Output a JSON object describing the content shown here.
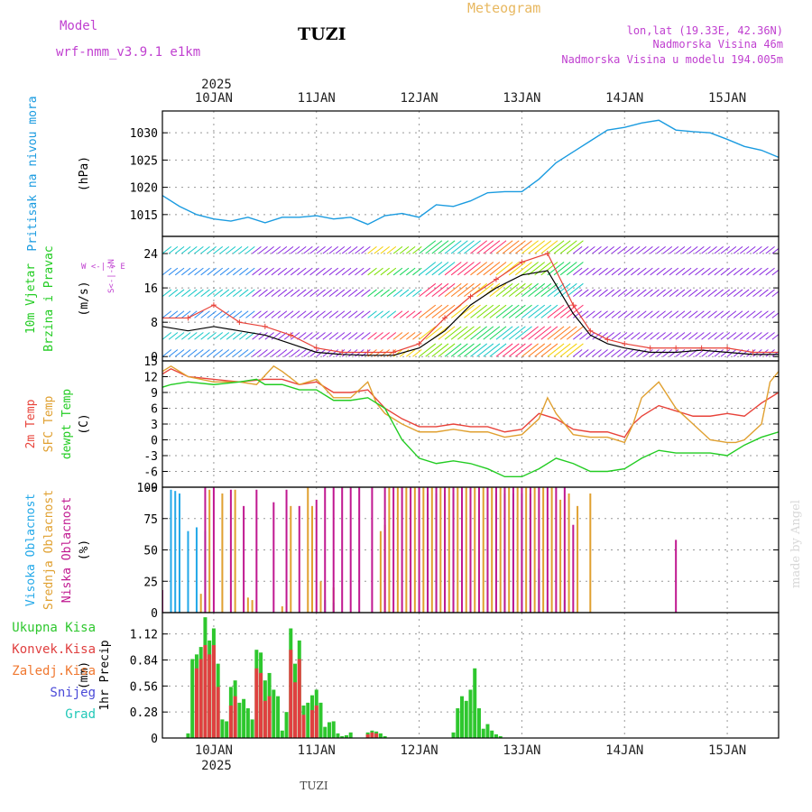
{
  "header": {
    "model_label": "Model",
    "model_name": "wrf-nmm_v3.9.1 e1km",
    "location": "TUZI",
    "product": "Meteogram",
    "coords": "lon,lat (19.33E, 42.36N)",
    "elevation": "Nadmorska Visina 46m",
    "model_elevation": "Nadmorska Visina u modelu 194.005m",
    "footer_location": "TUZI",
    "credit": "made by Angel"
  },
  "colors": {
    "pressure": "#1a9be0",
    "t2m": "#e8433a",
    "sfc": "#e0a030",
    "dewpt": "#22cc22",
    "high_cloud": "#22a8e8",
    "mid_cloud": "#e0a030",
    "low_cloud": "#c01890",
    "total_precip": "#2ec72e",
    "conv_precip": "#e04040",
    "frozen_precip": "#f07830",
    "snow": "#4a4ad8",
    "hail": "#22c8b8",
    "model_label": "#c040d0",
    "product": "#e8b860"
  },
  "chart_data": {
    "type": "meteogram",
    "year": "2025",
    "start": "2025-01-09 12:00",
    "end": "2025-01-15 12:00",
    "date_ticks": [
      {
        "label": "10JAN",
        "hours": 12
      },
      {
        "label": "11JAN",
        "hours": 36
      },
      {
        "label": "12JAN",
        "hours": 60
      },
      {
        "label": "13JAN",
        "hours": 84
      },
      {
        "label": "14JAN",
        "hours": 108
      },
      {
        "label": "15JAN",
        "hours": 132
      }
    ],
    "panels": [
      {
        "id": "pressure",
        "type": "line",
        "ylabel": [
          "Pritisak na nivou mora"
        ],
        "unit": "(hPa)",
        "ylim": [
          1011,
          1034
        ],
        "yticks": [
          1015,
          1020,
          1025,
          1030
        ],
        "grid": true,
        "series": [
          {
            "key": "slp",
            "color_key": "pressure",
            "x": [
              0,
              4,
              8,
              12,
              16,
              20,
              24,
              28,
              32,
              36,
              40,
              44,
              48,
              52,
              56,
              60,
              64,
              68,
              72,
              76,
              80,
              84,
              88,
              92,
              96,
              100,
              104,
              108,
              112,
              116,
              120,
              124,
              128,
              132,
              136,
              140,
              144
            ],
            "y": [
              1018.5,
              1016.5,
              1015.0,
              1014.2,
              1013.8,
              1014.5,
              1013.5,
              1014.5,
              1014.5,
              1014.8,
              1014.2,
              1014.5,
              1013.2,
              1014.8,
              1015.2,
              1014.5,
              1016.8,
              1016.5,
              1017.5,
              1019.0,
              1019.2,
              1019.2,
              1021.5,
              1024.5,
              1026.5,
              1028.5,
              1030.5,
              1031.0,
              1031.8,
              1032.3,
              1030.5,
              1030.2,
              1030.0,
              1028.8,
              1027.5,
              1026.8,
              1025.5
            ]
          }
        ]
      },
      {
        "id": "wind",
        "type": "wind",
        "ylabel": [
          "10m Vjetar",
          "Brzina i Pravac"
        ],
        "unit": "(m/s)",
        "compass": "W <-|-> E",
        "compass_ns": "S<-|->N",
        "ylim": [
          -1,
          28
        ],
        "yticks": [
          0,
          8,
          16,
          24
        ],
        "grid": true,
        "series": [
          {
            "key": "speed",
            "color": "#000000",
            "x": [
              0,
              6,
              12,
              18,
              24,
              30,
              36,
              42,
              48,
              54,
              60,
              66,
              72,
              78,
              84,
              90,
              96,
              100,
              104,
              108,
              114,
              120,
              126,
              132,
              138,
              144
            ],
            "y": [
              7,
              6,
              7,
              6,
              5,
              3,
              1,
              0.5,
              0.3,
              0.3,
              2,
              6,
              12,
              16,
              19,
              20,
              10,
              5,
              3,
              2,
              1,
              1,
              1.5,
              1,
              0.5,
              0.5
            ]
          },
          {
            "key": "gust",
            "color_key": "t2m",
            "x": [
              0,
              6,
              12,
              18,
              24,
              30,
              36,
              42,
              48,
              54,
              60,
              66,
              72,
              78,
              84,
              90,
              96,
              100,
              104,
              108,
              114,
              120,
              126,
              132,
              138,
              144
            ],
            "y": [
              9,
              9,
              12,
              8,
              7,
              5,
              2,
              1,
              1,
              1,
              3,
              9,
              14,
              18,
              22,
              24,
              12,
              6,
              4,
              3,
              2,
              2,
              2,
              2,
              1,
              1
            ]
          }
        ]
      },
      {
        "id": "temp",
        "type": "line",
        "ylabel": [
          "2m Temp",
          "SFC Temp",
          "dewpt Temp"
        ],
        "label_color_keys": [
          "t2m",
          "sfc",
          "dewpt"
        ],
        "unit": "(C)",
        "ylim": [
          -9,
          15
        ],
        "yticks": [
          -9,
          -6,
          -3,
          0,
          3,
          6,
          9,
          12,
          15
        ],
        "grid": true,
        "series": [
          {
            "key": "t2m",
            "color_key": "t2m",
            "x": [
              0,
              2,
              6,
              12,
              18,
              24,
              28,
              32,
              36,
              40,
              44,
              48,
              52,
              56,
              60,
              64,
              68,
              72,
              76,
              80,
              84,
              88,
              92,
              96,
              100,
              104,
              108,
              110,
              112,
              116,
              120,
              124,
              128,
              132,
              136,
              140,
              144
            ],
            "y": [
              12.5,
              13.5,
              12,
              11.5,
              11,
              11.5,
              11.5,
              10.5,
              11,
              9,
              9,
              9.5,
              6,
              4,
              2.5,
              2.5,
              3,
              2.5,
              2.5,
              1.5,
              2,
              5,
              4,
              2,
              1.5,
              1.5,
              0.5,
              3,
              4.5,
              6.5,
              5.5,
              4.5,
              4.5,
              5,
              4.5,
              7,
              9
            ]
          },
          {
            "key": "sfc",
            "color_key": "sfc",
            "x": [
              0,
              2,
              6,
              12,
              18,
              22,
              26,
              28,
              32,
              36,
              40,
              44,
              48,
              50,
              52,
              56,
              60,
              64,
              68,
              72,
              76,
              80,
              84,
              88,
              90,
              92,
              96,
              100,
              104,
              108,
              110,
              112,
              116,
              120,
              124,
              128,
              132,
              134,
              136,
              140,
              142,
              144
            ],
            "y": [
              13,
              14,
              12,
              11,
              11,
              10.5,
              14,
              13,
              10.5,
              11.5,
              8,
              8,
              11,
              7,
              5,
              3,
              1.5,
              1.5,
              2,
              1.5,
              1.5,
              0.5,
              1,
              4,
              8,
              5,
              1,
              0.5,
              0.5,
              -0.5,
              3,
              8,
              11,
              6,
              3,
              0,
              -0.5,
              -0.5,
              0,
              3,
              11,
              13
            ]
          },
          {
            "key": "dewpt",
            "color_key": "dewpt",
            "x": [
              0,
              2,
              6,
              12,
              18,
              22,
              24,
              28,
              32,
              36,
              40,
              44,
              48,
              52,
              56,
              60,
              64,
              68,
              72,
              76,
              80,
              84,
              88,
              92,
              96,
              100,
              104,
              108,
              112,
              116,
              120,
              124,
              128,
              132,
              136,
              140,
              144
            ],
            "y": [
              10,
              10.5,
              11,
              10.5,
              11,
              11.5,
              10.5,
              10.5,
              9.5,
              9.5,
              7.5,
              7.5,
              8,
              6,
              0,
              -3.5,
              -4.5,
              -4,
              -4.5,
              -5.5,
              -7,
              -7,
              -5.5,
              -3.5,
              -4.5,
              -6,
              -6,
              -5.5,
              -3.5,
              -2,
              -2.5,
              -2.5,
              -2.5,
              -3,
              -1,
              0.5,
              1.5
            ]
          }
        ]
      },
      {
        "id": "cloud",
        "type": "bar",
        "ylabel": [
          "Visoka Oblacnost",
          "Srednja Oblacnost",
          "Niska Oblacnost"
        ],
        "label_color_keys": [
          "high_cloud",
          "mid_cloud",
          "low_cloud"
        ],
        "unit": "(%)",
        "ylim": [
          0,
          100
        ],
        "yticks": [
          0,
          25,
          50,
          75,
          100
        ],
        "grid": true,
        "bars": [
          {
            "color_key": "high_cloud",
            "x": [
              2,
              3,
              4,
              6,
              8,
              10,
              38,
              40,
              62,
              64,
              66,
              68,
              70,
              72,
              74,
              76,
              78,
              80,
              82,
              84,
              86,
              88,
              90,
              94
            ],
            "y": [
              98,
              97,
              95,
              65,
              68,
              65,
              10,
              8,
              95,
              95,
              95,
              95,
              95,
              95,
              95,
              95,
              95,
              95,
              95,
              95,
              95,
              35,
              10,
              10
            ]
          },
          {
            "color_key": "mid_cloud",
            "x": [
              9,
              11,
              14,
              17,
              20,
              21,
              28,
              30,
              34,
              35,
              37,
              40,
              51,
              52,
              53,
              55,
              57,
              59,
              61,
              63,
              65,
              67,
              69,
              71,
              73,
              75,
              77,
              79,
              81,
              83,
              85,
              87,
              89,
              91,
              93,
              95,
              97,
              100
            ],
            "y": [
              15,
              98,
              95,
              98,
              12,
              10,
              5,
              85,
              100,
              85,
              25,
              20,
              65,
              70,
              100,
              100,
              100,
              100,
              100,
              100,
              100,
              100,
              100,
              100,
              100,
              100,
              100,
              100,
              100,
              100,
              100,
              100,
              100,
              100,
              90,
              95,
              85,
              95
            ]
          },
          {
            "color_key": "low_cloud",
            "x": [
              0,
              10,
              12,
              16,
              19,
              22,
              26,
              29,
              32,
              36,
              38,
              40,
              42,
              44,
              46,
              49,
              52,
              54,
              56,
              58,
              60,
              62,
              64,
              66,
              68,
              70,
              72,
              74,
              76,
              78,
              80,
              82,
              84,
              86,
              88,
              90,
              92,
              94,
              96,
              120
            ],
            "y": [
              18,
              100,
              100,
              98,
              85,
              98,
              88,
              98,
              85,
              90,
              100,
              100,
              100,
              100,
              100,
              100,
              100,
              100,
              100,
              100,
              100,
              100,
              100,
              100,
              100,
              100,
              100,
              100,
              100,
              100,
              100,
              100,
              100,
              100,
              100,
              100,
              100,
              100,
              70,
              58
            ]
          }
        ]
      },
      {
        "id": "precip",
        "type": "bar",
        "ylabel": [
          "1hr Precip"
        ],
        "unit": "(mm)",
        "ylim": [
          0,
          1.35
        ],
        "yticks": [
          0,
          0.28,
          0.56,
          0.84,
          1.12
        ],
        "grid": true,
        "legend": [
          {
            "label": "Ukupna Kisa",
            "color_key": "total_precip"
          },
          {
            "label": "Konvek.Kisa",
            "color_key": "conv_precip"
          },
          {
            "label": "Zaledj.Kisa",
            "color_key": "frozen_precip"
          },
          {
            "label": "Snijeg",
            "color_key": "snow"
          },
          {
            "label": "Grad",
            "color_key": "hail"
          }
        ],
        "bars": [
          {
            "color_key": "total_precip",
            "x": [
              6,
              7,
              8,
              9,
              10,
              11,
              12,
              13,
              14,
              15,
              16,
              17,
              18,
              19,
              20,
              21,
              22,
              23,
              24,
              25,
              26,
              27,
              28,
              29,
              30,
              31,
              32,
              33,
              34,
              35,
              36,
              37,
              38,
              39,
              40,
              41,
              42,
              43,
              44,
              48,
              49,
              50,
              51,
              52,
              68,
              69,
              70,
              71,
              72,
              73,
              74,
              75,
              76,
              77,
              78,
              79
            ],
            "y": [
              0.05,
              0.85,
              0.9,
              0.98,
              1.3,
              1.05,
              1.18,
              0.8,
              0.2,
              0.18,
              0.55,
              0.62,
              0.38,
              0.42,
              0.32,
              0.2,
              0.95,
              0.92,
              0.62,
              0.7,
              0.52,
              0.45,
              0.08,
              0.28,
              1.18,
              0.8,
              1.05,
              0.35,
              0.38,
              0.46,
              0.52,
              0.38,
              0.12,
              0.17,
              0.18,
              0.05,
              0.02,
              0.03,
              0.06,
              0.06,
              0.08,
              0.07,
              0.05,
              0.02,
              0.06,
              0.32,
              0.45,
              0.4,
              0.52,
              0.75,
              0.32,
              0.1,
              0.15,
              0.08,
              0.04,
              0.02
            ]
          },
          {
            "color_key": "conv_precip",
            "x": [
              8,
              9,
              10,
              11,
              12,
              13,
              16,
              17,
              22,
              23,
              24,
              25,
              30,
              31,
              32,
              33,
              35,
              36,
              48,
              49,
              50
            ],
            "y": [
              0.75,
              0.85,
              1.0,
              0.9,
              1.0,
              0.55,
              0.35,
              0.45,
              0.75,
              0.7,
              0.4,
              0.45,
              0.95,
              0.6,
              0.85,
              0.25,
              0.3,
              0.35,
              0.04,
              0.06,
              0.05
            ]
          }
        ]
      }
    ]
  }
}
